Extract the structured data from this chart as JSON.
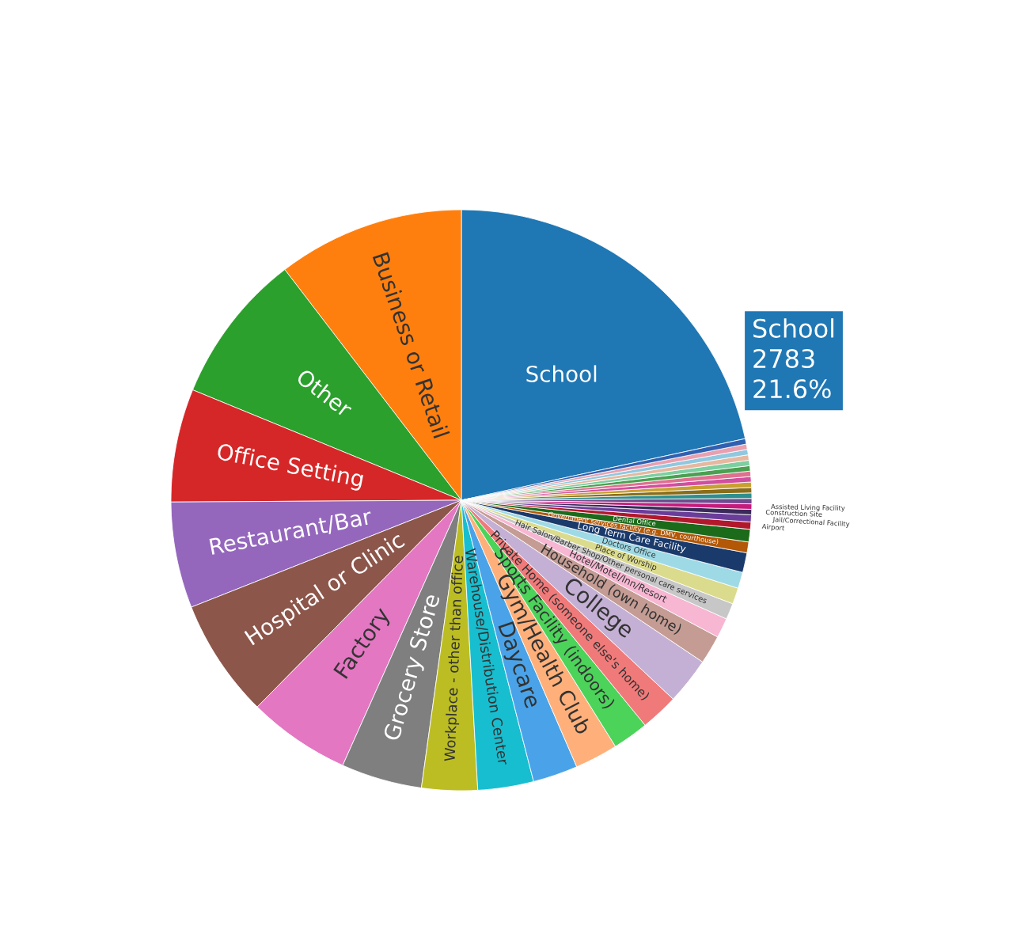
{
  "chart_data": {
    "type": "pie",
    "categories": [
      "School",
      "Business or Retail",
      "Other",
      "Office Setting",
      "Restaurant/Bar",
      "Hospital or Clinic",
      "Factory",
      "Grocery Store",
      "Workplace - other than office",
      "Warehouse/Distribution Center",
      "Daycare",
      "Gym/Health Club",
      "Sports Facility (indoors)",
      "Private Home (someone else's home)",
      "College",
      "Household (own home)",
      "Hotel/Motel/Inn/Resort",
      "Hair Salon/Barber Shop/Other personal care services",
      "Place of Worship",
      "Doctors Office",
      "Long Term Care Facility",
      "Government services facility (e.g. DMV, courthouse)",
      "Dental Office",
      "Airport",
      "Jail/Correctional Facility",
      "Construction Site",
      "Assisted Living Facility",
      null,
      null,
      null,
      null,
      null,
      null,
      null,
      null,
      null,
      null,
      null,
      null
    ],
    "values": [
      21.6,
      10.4,
      8.4,
      6.3,
      5.9,
      6.6,
      5.7,
      4.5,
      3.1,
      3.1,
      2.5,
      2.4,
      2.0,
      2.1,
      2.6,
      1.6,
      1.1,
      0.9,
      0.9,
      0.9,
      1.1,
      0.6,
      0.7,
      0.4,
      0.4,
      0.3,
      0.3,
      0.3,
      0.3,
      0.3,
      0.3,
      0.3,
      0.3,
      0.3,
      0.3,
      0.3,
      0.3,
      0.3,
      0.3
    ],
    "colors": [
      "#1f77b4",
      "#ff7f0e",
      "#2ca02c",
      "#d62728",
      "#9467bd",
      "#8c564b",
      "#e377c2",
      "#7f7f7f",
      "#bcbd22",
      "#17becf",
      "#4aa3e8",
      "#ffb07a",
      "#4cd35a",
      "#f07a7a",
      "#c5b0d5",
      "#c49c94",
      "#f7b6d2",
      "#c7c7c7",
      "#dbdb8d",
      "#9edae5",
      "#1a3a6b",
      "#b35806",
      "#1b6b1b",
      "#b2182b",
      "#6a3d9a",
      "#3a2a5a",
      "#c51b7d",
      "#6f4a8e",
      "#2f8f8f",
      "#8a6d1a",
      "#c8a030",
      "#d04fa0",
      "#e07090",
      "#4aa050",
      "#7ccfa0",
      "#e6b8a0",
      "#90c8e0",
      "#e8a0b0",
      "#3060b0"
    ],
    "annotations": [
      "School\n2783\n21.6%"
    ]
  }
}
